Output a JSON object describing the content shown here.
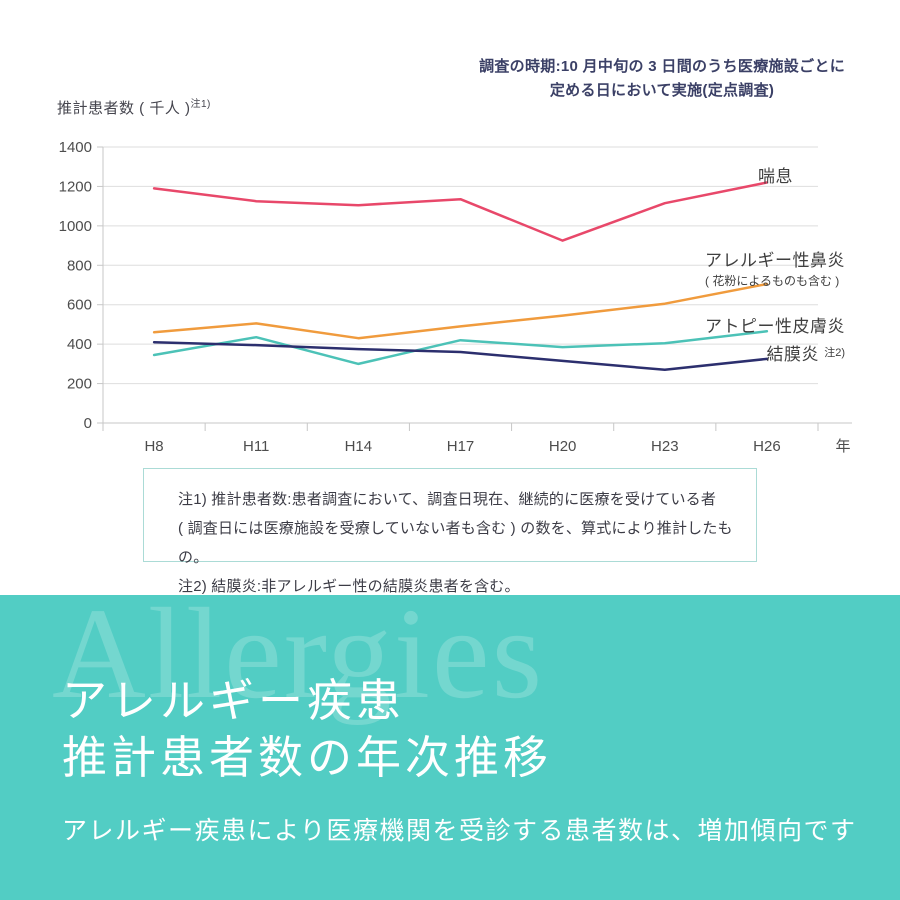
{
  "survey_note": {
    "line1": "調査の時期:10 月中旬の 3 日間のうち医療施設ごとに",
    "line2": "定める日において実施(定点調査)"
  },
  "chart_data": {
    "type": "line",
    "ylabel": "推計患者数 ( 千人 )",
    "ylabel_note": "注1)",
    "xlabel": "年",
    "ylim": [
      0,
      1400
    ],
    "ytick_step": 200,
    "grid": "horizontal",
    "legend_position": "right-inline",
    "categories": [
      "H8",
      "H11",
      "H14",
      "H17",
      "H20",
      "H23",
      "H26"
    ],
    "series": [
      {
        "name": "喘息",
        "color": "#e8486a",
        "values": [
          1190,
          1125,
          1105,
          1135,
          925,
          1115,
          1220
        ]
      },
      {
        "name": "アレルギー性鼻炎",
        "subtitle": "( 花粉によるものも含む )",
        "color": "#f09b3d",
        "values": [
          460,
          505,
          430,
          490,
          545,
          605,
          705
        ]
      },
      {
        "name": "アトピー性皮膚炎",
        "color": "#4cc2b7",
        "values": [
          345,
          435,
          300,
          420,
          385,
          405,
          465
        ]
      },
      {
        "name": "結膜炎",
        "note": "注2)",
        "color": "#2c2f6e",
        "values": [
          410,
          395,
          375,
          360,
          315,
          270,
          325
        ]
      }
    ],
    "axis_color": "#c7c7c7",
    "gridline_color": "#dedede",
    "tick_label_color": "#4d4d4d"
  },
  "notes_box": {
    "line1": "注1) 推計患者数:患者調査において、調査日現在、継続的に医療を受けている者",
    "line2": "( 調査日には医療施設を受療していない者も含む ) の数を、算式により推計したもの。",
    "line3": "注2) 結膜炎:非アレルギー性の結膜炎患者を含む。"
  },
  "footer": {
    "watermark": "Allergies",
    "bg_color": "#52cdc4",
    "title_line1": "アレルギー疾患",
    "title_line2": "推計患者数の年次推移",
    "subtitle": "アレルギー疾患により医療機関を受診する患者数は、増加傾向です"
  }
}
